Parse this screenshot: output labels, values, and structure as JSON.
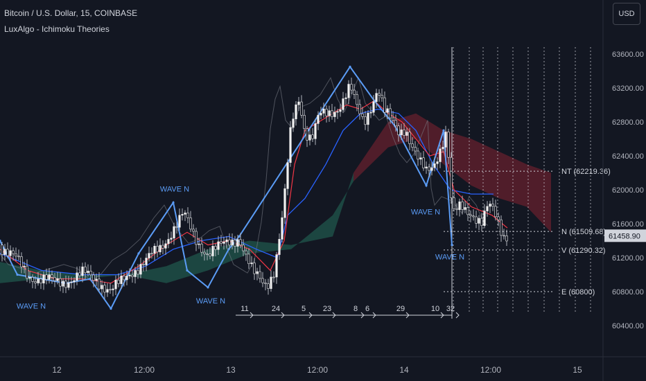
{
  "header": {
    "title": "Bitcoin / U.S. Dollar, 15, COINBASE",
    "indicator": "LuxAlgo - Ichimoku Theories",
    "currency_button": "USD"
  },
  "colors": {
    "background": "#131722",
    "bull": "#f0f0f0",
    "tenkan": "#f23645",
    "kijun": "#2962ff",
    "wave": "#5b9cf6",
    "cloud_bull": "#1f4f47",
    "cloud_bear": "#5c1f2b"
  },
  "chart_data": {
    "type": "line",
    "ylim": [
      60400,
      63600
    ],
    "y_ticks": [
      "63600.00",
      "63200.00",
      "62800.00",
      "62400.00",
      "62000.00",
      "61600.00",
      "61200.00",
      "60800.00",
      "60400.00"
    ],
    "x_ticks": [
      "12",
      "12:00",
      "13",
      "12:00",
      "14",
      "12:00",
      "15"
    ],
    "last_price": "61458.90",
    "price_path": [
      [
        0,
        61350
      ],
      [
        20,
        61200
      ],
      [
        40,
        61000
      ],
      [
        60,
        60950
      ],
      [
        80,
        60900
      ],
      [
        100,
        60950
      ],
      [
        120,
        61000
      ],
      [
        140,
        60950
      ],
      [
        160,
        60800
      ],
      [
        175,
        60900
      ],
      [
        190,
        61050
      ],
      [
        210,
        61150
      ],
      [
        230,
        61300
      ],
      [
        250,
        61550
      ],
      [
        265,
        61700
      ],
      [
        280,
        61450
      ],
      [
        300,
        61250
      ],
      [
        315,
        61300
      ],
      [
        330,
        61400
      ],
      [
        345,
        61450
      ],
      [
        355,
        61200
      ],
      [
        365,
        61000
      ],
      [
        375,
        60950
      ],
      [
        385,
        60900
      ],
      [
        395,
        61050
      ],
      [
        405,
        61500
      ],
      [
        412,
        62000
      ],
      [
        418,
        62600
      ],
      [
        425,
        62950
      ],
      [
        432,
        63100
      ],
      [
        440,
        62700
      ],
      [
        450,
        62600
      ],
      [
        460,
        62850
      ],
      [
        475,
        62900
      ],
      [
        490,
        63000
      ],
      [
        505,
        63200
      ],
      [
        515,
        62950
      ],
      [
        525,
        62800
      ],
      [
        535,
        63000
      ],
      [
        545,
        63200
      ],
      [
        555,
        62900
      ],
      [
        565,
        62800
      ],
      [
        575,
        62700
      ],
      [
        585,
        62750
      ],
      [
        595,
        62500
      ],
      [
        605,
        62300
      ],
      [
        615,
        62200
      ],
      [
        625,
        62300
      ],
      [
        635,
        62500
      ],
      [
        645,
        62700
      ],
      [
        650,
        61900
      ],
      [
        655,
        61700
      ],
      [
        665,
        61800
      ],
      [
        680,
        61750
      ],
      [
        695,
        61600
      ],
      [
        705,
        61800
      ],
      [
        715,
        61700
      ],
      [
        725,
        61500
      ],
      [
        732,
        61460
      ]
    ],
    "tenkan_path": [
      [
        0,
        61300
      ],
      [
        40,
        61050
      ],
      [
        80,
        60950
      ],
      [
        120,
        60950
      ],
      [
        160,
        60900
      ],
      [
        200,
        61100
      ],
      [
        240,
        61350
      ],
      [
        270,
        61500
      ],
      [
        300,
        61350
      ],
      [
        330,
        61400
      ],
      [
        360,
        61300
      ],
      [
        390,
        61050
      ],
      [
        410,
        61400
      ],
      [
        425,
        62300
      ],
      [
        440,
        62700
      ],
      [
        460,
        62800
      ],
      [
        480,
        62900
      ],
      [
        500,
        63000
      ],
      [
        520,
        62950
      ],
      [
        540,
        63050
      ],
      [
        560,
        62900
      ],
      [
        580,
        62800
      ],
      [
        600,
        62600
      ],
      [
        620,
        62400
      ],
      [
        640,
        62450
      ],
      [
        655,
        62000
      ],
      [
        680,
        61800
      ],
      [
        710,
        61700
      ],
      [
        732,
        61550
      ]
    ],
    "kijun_path": [
      [
        0,
        61250
      ],
      [
        60,
        61050
      ],
      [
        120,
        61000
      ],
      [
        170,
        61000
      ],
      [
        210,
        61100
      ],
      [
        250,
        61300
      ],
      [
        290,
        61400
      ],
      [
        330,
        61450
      ],
      [
        370,
        61300
      ],
      [
        400,
        61200
      ],
      [
        415,
        61700
      ],
      [
        440,
        61900
      ],
      [
        470,
        62300
      ],
      [
        495,
        62700
      ],
      [
        520,
        62900
      ],
      [
        545,
        62950
      ],
      [
        575,
        62900
      ],
      [
        600,
        62700
      ],
      [
        625,
        62300
      ],
      [
        650,
        62000
      ],
      [
        680,
        61950
      ],
      [
        712,
        61950
      ]
    ],
    "cloud_upper": [
      [
        0,
        61150
      ],
      [
        60,
        61050
      ],
      [
        120,
        61000
      ],
      [
        180,
        61000
      ],
      [
        240,
        61100
      ],
      [
        300,
        61300
      ],
      [
        360,
        61400
      ],
      [
        420,
        61350
      ],
      [
        480,
        61450
      ],
      [
        510,
        62200
      ],
      [
        560,
        62800
      ],
      [
        600,
        62900
      ],
      [
        640,
        62700
      ],
      [
        680,
        62600
      ],
      [
        720,
        62450
      ],
      [
        760,
        62300
      ],
      [
        795,
        62200
      ]
    ],
    "cloud_lower": [
      [
        0,
        60900
      ],
      [
        60,
        60950
      ],
      [
        120,
        60950
      ],
      [
        180,
        61000
      ],
      [
        240,
        60900
      ],
      [
        300,
        61050
      ],
      [
        360,
        61250
      ],
      [
        420,
        61300
      ],
      [
        480,
        61700
      ],
      [
        510,
        62100
      ],
      [
        560,
        62500
      ],
      [
        600,
        62600
      ],
      [
        640,
        62300
      ],
      [
        680,
        62050
      ],
      [
        720,
        61900
      ],
      [
        760,
        61800
      ],
      [
        795,
        61500
      ]
    ],
    "wave_path": [
      [
        0,
        61400
      ],
      [
        25,
        61000
      ],
      [
        60,
        60950
      ],
      [
        95,
        60900
      ],
      [
        130,
        60950
      ],
      [
        160,
        60600
      ],
      [
        200,
        61250
      ],
      [
        250,
        61850
      ],
      [
        270,
        61050
      ],
      [
        300,
        60850
      ],
      [
        330,
        61300
      ],
      [
        345,
        61450
      ],
      [
        505,
        63450
      ],
      [
        540,
        63050
      ],
      [
        570,
        62750
      ],
      [
        615,
        62050
      ],
      [
        640,
        62700
      ],
      [
        652,
        61350
      ]
    ],
    "wave_labels": [
      {
        "text": "WAVE N",
        "x": 45,
        "y": 60600
      },
      {
        "text": "WAVE N",
        "x": 252,
        "y": 61980
      },
      {
        "text": "WAVE N",
        "x": 304,
        "y": 60660
      },
      {
        "text": "WAVE N",
        "x": 614,
        "y": 61710
      },
      {
        "text": "WAVE N",
        "x": 649,
        "y": 61180
      }
    ],
    "levels": [
      {
        "label": "NT (62219.36)",
        "value": 62219.36
      },
      {
        "label": "N (61509.68)",
        "value": 61509.68
      },
      {
        "label": "V (61290.32)",
        "value": 61290.32
      },
      {
        "label": "E (60800)",
        "value": 60800
      }
    ],
    "count_labels": [
      {
        "text": "11",
        "x": 353
      },
      {
        "text": "24",
        "x": 398
      },
      {
        "text": "5",
        "x": 438
      },
      {
        "text": "23",
        "x": 472
      },
      {
        "text": "8",
        "x": 513
      },
      {
        "text": "6",
        "x": 530
      },
      {
        "text": "29",
        "x": 578
      },
      {
        "text": "10",
        "x": 628
      },
      {
        "text": "32",
        "x": 650
      }
    ]
  }
}
